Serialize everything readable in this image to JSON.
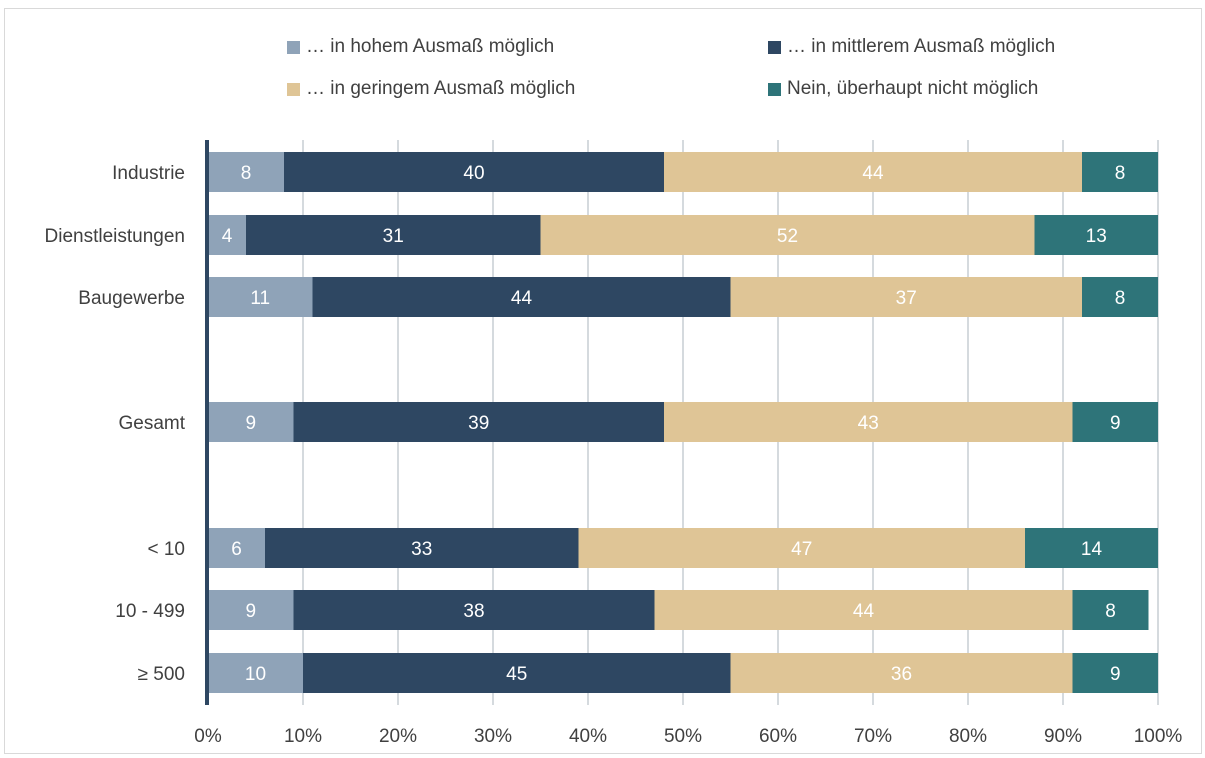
{
  "chart_data": {
    "type": "bar",
    "orientation": "horizontal-stacked-percent",
    "title": "",
    "xlabel": "",
    "ylabel": "",
    "xlim": [
      0,
      100
    ],
    "grid": true,
    "legend_position": "top",
    "x_ticks": [
      "0%",
      "10%",
      "20%",
      "30%",
      "40%",
      "50%",
      "60%",
      "70%",
      "80%",
      "90%",
      "100%"
    ],
    "categories": [
      "Industrie",
      "Dienstleistungen",
      "Baugewerbe",
      "Gesamt",
      "< 10",
      "10 - 499",
      "≥ 500"
    ],
    "series": [
      {
        "name": "… in hohem Ausmaß möglich",
        "color": "#8fa3b8",
        "values": [
          8,
          4,
          11,
          9,
          6,
          9,
          10
        ]
      },
      {
        "name": "… in mittlerem Ausmaß möglich",
        "color": "#2e4762",
        "values": [
          40,
          31,
          44,
          39,
          33,
          38,
          45
        ]
      },
      {
        "name": "… in geringem Ausmaß möglich",
        "color": "#dfc596",
        "values": [
          44,
          52,
          37,
          43,
          47,
          44,
          36
        ]
      },
      {
        "name": "Nein, überhaupt nicht möglich",
        "color": "#2e7479",
        "values": [
          8,
          13,
          8,
          9,
          14,
          8,
          9
        ]
      }
    ]
  }
}
